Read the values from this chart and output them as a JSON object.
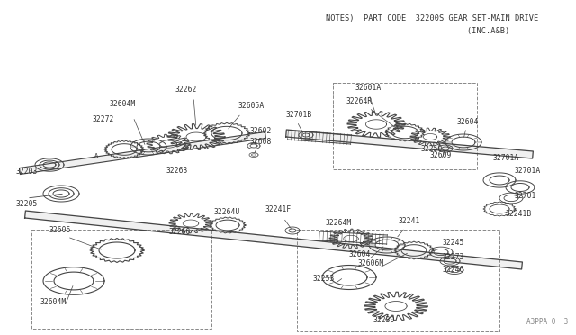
{
  "title_line1": "NOTES)  PART CODE  32200S GEAR SET-MAIN DRIVE",
  "title_line2": "                        (INC.A&B)",
  "watermark": "A3PPA 0  3",
  "bg_color": "#ffffff",
  "lc": "#444444",
  "tc": "#333333",
  "fs": 5.8
}
